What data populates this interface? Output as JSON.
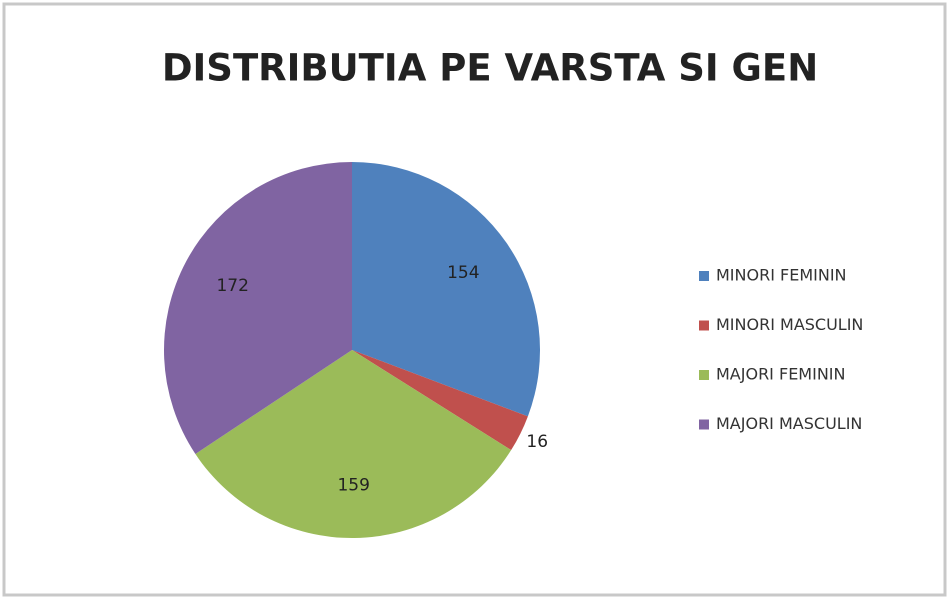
{
  "chart_data": {
    "type": "pie",
    "title": "DISTRIBUTIA PE VARSTA SI GEN",
    "categories": [
      "MINORI FEMININ",
      "MINORI MASCULIN",
      "MAJORI FEMININ",
      "MAJORI MASCULIN"
    ],
    "values": [
      154,
      16,
      159,
      172
    ],
    "colors": [
      "#4f81bd",
      "#c0504d",
      "#9bbb59",
      "#8064a2"
    ],
    "legend": "right"
  }
}
